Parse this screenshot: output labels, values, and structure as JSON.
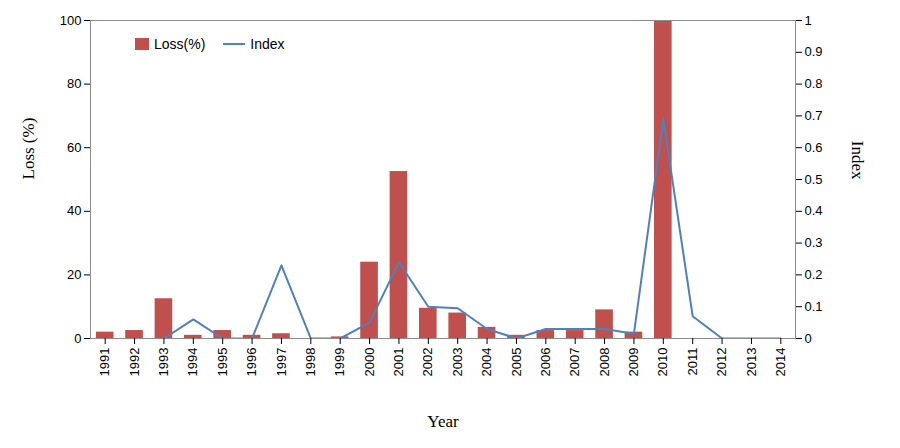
{
  "chart_data": {
    "type": "bar",
    "xlabel": "Year",
    "ylabel": "Loss (%)",
    "y2label": "Index",
    "categories": [
      "1991",
      "1992",
      "1993",
      "1994",
      "1995",
      "1996",
      "1997",
      "1998",
      "1999",
      "2000",
      "2001",
      "2002",
      "2003",
      "2004",
      "2005",
      "2006",
      "2007",
      "2008",
      "2009",
      "2010",
      "2011",
      "2012",
      "2013",
      "2014"
    ],
    "series": [
      {
        "name": "Loss(%)",
        "type": "bar",
        "color": "#c0504d",
        "values": [
          2,
          2.5,
          12.5,
          1,
          2.5,
          1,
          1.5,
          0,
          0.5,
          24,
          52.5,
          9.5,
          8,
          3.5,
          1,
          2.5,
          2.5,
          9,
          2,
          100,
          0,
          0,
          0,
          0
        ]
      },
      {
        "name": "Index",
        "type": "line",
        "color": "#4f81bd",
        "axis": "y2",
        "values": [
          null,
          null,
          0,
          0.06,
          0,
          0,
          0.23,
          0,
          0,
          0.05,
          0.24,
          0.1,
          0.095,
          0.03,
          0,
          0.03,
          0.03,
          0.03,
          0.015,
          0.69,
          0.07,
          0,
          0,
          0
        ]
      }
    ],
    "ylim": [
      0,
      100
    ],
    "yticks": [
      0,
      20,
      40,
      60,
      80,
      100
    ],
    "y2lim": [
      0,
      1
    ],
    "y2ticks": [
      0,
      0.1,
      0.2,
      0.3,
      0.4,
      0.5,
      0.6,
      0.7,
      0.8,
      0.9,
      1
    ],
    "grid": false,
    "legend": "upper left"
  }
}
